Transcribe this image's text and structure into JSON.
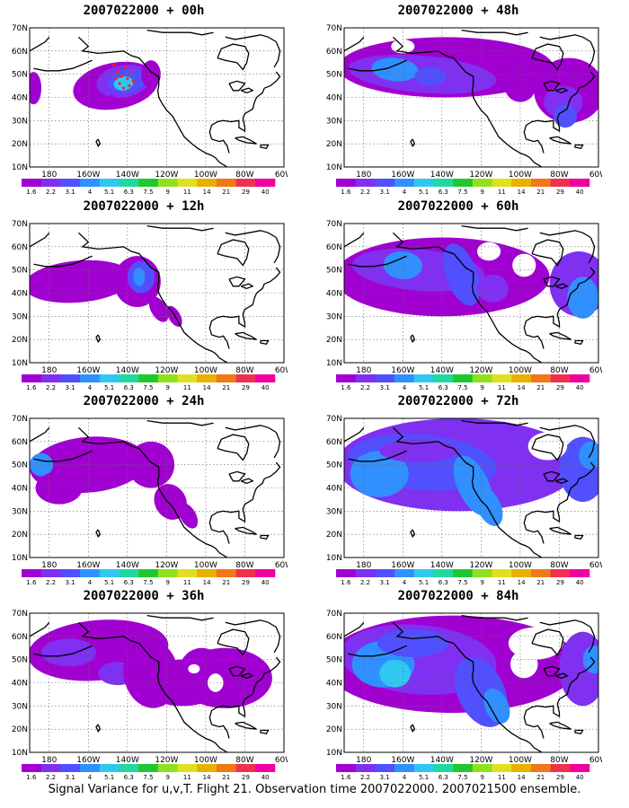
{
  "caption": "Signal Variance for u,v,T. Flight 21. Observation time 2007022000. 2007021500 ensemble.",
  "lat_labels": [
    "70N",
    "60N",
    "50N",
    "40N",
    "30N",
    "20N",
    "10N"
  ],
  "lon_labels": [
    "180",
    "160W",
    "140W",
    "120W",
    "100W",
    "80W",
    "60W"
  ],
  "colorbar": {
    "labels": [
      "1.6",
      "2.2",
      "3.1",
      "4",
      "5.1",
      "6.3",
      "7.5",
      "9",
      "11",
      "14",
      "21",
      "29",
      "40"
    ],
    "colors": [
      "#a000d0",
      "#8030f0",
      "#5050ff",
      "#3090ff",
      "#30c8f0",
      "#20d8a0",
      "#20c830",
      "#90e020",
      "#e0e020",
      "#e8b000",
      "#f07818",
      "#f03050",
      "#f000a0"
    ]
  },
  "panels": [
    {
      "title": "2007022000 + 00h"
    },
    {
      "title": "2007022000 + 48h"
    },
    {
      "title": "2007022000 + 12h"
    },
    {
      "title": "2007022000 + 60h"
    },
    {
      "title": "2007022000 + 24h"
    },
    {
      "title": "2007022000 + 72h"
    },
    {
      "title": "2007022000 + 36h"
    },
    {
      "title": "2007022000 + 84h"
    }
  ]
}
